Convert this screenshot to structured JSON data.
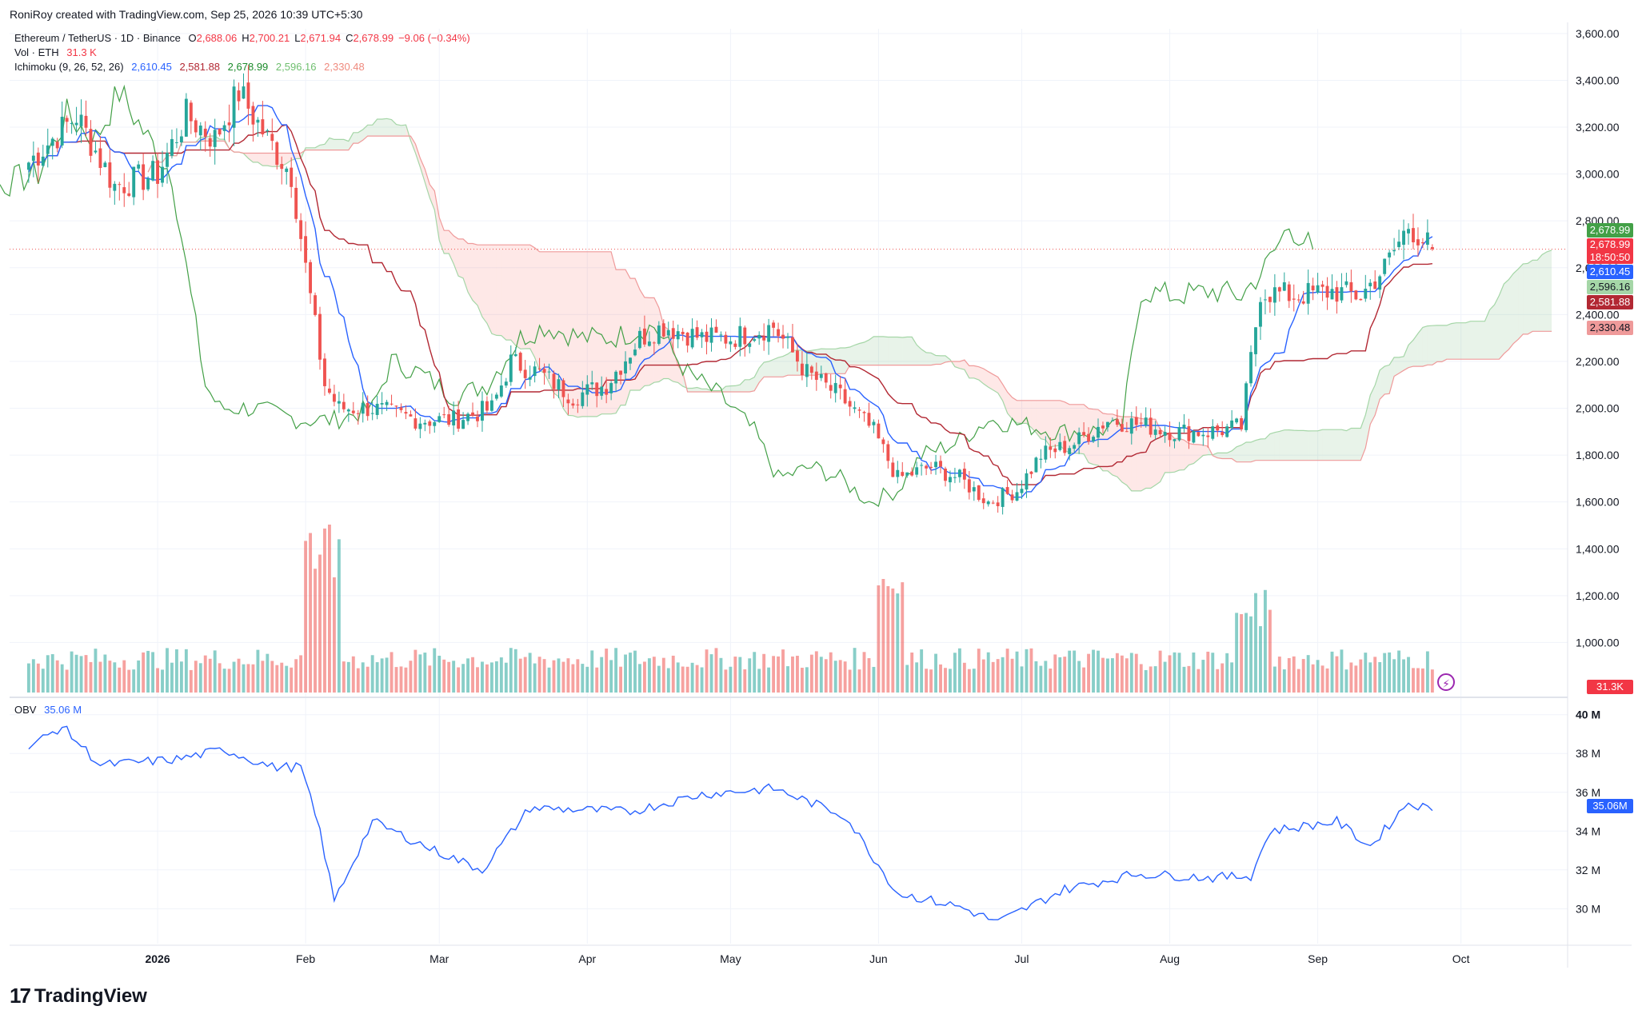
{
  "header": {
    "credit": "RoniRoy created with TradingView.com, Sep 25, 2026 10:39 UTC+5:30"
  },
  "legend": {
    "symbol": "Ethereum / TetherUS · 1D · Binance",
    "ohlc": {
      "o_label": "O",
      "o": "2,688.06",
      "h_label": "H",
      "h": "2,700.21",
      "l_label": "L",
      "l": "2,671.94",
      "c_label": "C",
      "c": "2,678.99",
      "change": "−9.06 (−0.34%)"
    },
    "vol": {
      "label": "Vol · ETH",
      "value": "31.3 K"
    },
    "ichimoku": {
      "label": "Ichimoku (9, 26, 52, 26)",
      "v1": "2,610.45",
      "v2": "2,581.88",
      "v3": "2,678.99",
      "v4": "2,596.16",
      "v5": "2,330.48"
    },
    "obv": {
      "label": "OBV",
      "value": "35.06 M"
    }
  },
  "price_tags": {
    "lagging": "2,678.99",
    "last": "2,678.99",
    "countdown": "18:50:50",
    "conversion": "2,610.45",
    "span_a": "2,596.16",
    "base": "2,581.88",
    "span_b": "2,330.48",
    "volume": "31.3K",
    "obv": "35.06M"
  },
  "colors": {
    "up": "#26a69a",
    "down": "#ef5350",
    "conversion": "#2962ff",
    "base": "#b22833",
    "lagging": "#43a047",
    "span_a": "#a5d6a7",
    "span_b": "#ef9a9a",
    "obv": "#2962ff"
  },
  "brand": {
    "logo": "17",
    "name": "TradingView"
  },
  "chart_data": [
    {
      "type": "candlestick",
      "title": "Ethereum / TetherUS · 1D · Binance",
      "price_axis": {
        "ticks": [
          "3,600.00",
          "3,400.00",
          "3,200.00",
          "3,000.00",
          "2,800.00",
          "2,600.00",
          "2,400.00",
          "2,200.00",
          "2,000.00",
          "1,800.00",
          "1,600.00",
          "1,400.00",
          "1,200.00",
          "1,000.00"
        ],
        "ylim": [
          800,
          3620
        ]
      },
      "x_axis": {
        "ticks": [
          "2026",
          "Feb",
          "Mar",
          "Apr",
          "May",
          "Jun",
          "Jul",
          "Aug",
          "Sep",
          "Oct"
        ]
      },
      "candle_anchors": [
        {
          "date": "2025-12-05",
          "close": 3050
        },
        {
          "date": "2025-12-15",
          "close": 3250
        },
        {
          "date": "2025-12-23",
          "close": 2950
        },
        {
          "date": "2026-01-01",
          "close": 3000
        },
        {
          "date": "2026-01-07",
          "close": 3250
        },
        {
          "date": "2026-01-13",
          "close": 3150
        },
        {
          "date": "2026-01-18",
          "close": 3350
        },
        {
          "date": "2026-01-24",
          "close": 3150
        },
        {
          "date": "2026-01-29",
          "close": 3000
        },
        {
          "date": "2026-02-01",
          "close": 2600
        },
        {
          "date": "2026-02-05",
          "close": 2100
        },
        {
          "date": "2026-02-08",
          "close": 2000
        },
        {
          "date": "2026-02-15",
          "close": 2000
        },
        {
          "date": "2026-02-25",
          "close": 1950
        },
        {
          "date": "2026-03-04",
          "close": 1950
        },
        {
          "date": "2026-03-12",
          "close": 2000
        },
        {
          "date": "2026-03-16",
          "close": 2200
        },
        {
          "date": "2026-03-22",
          "close": 2150
        },
        {
          "date": "2026-03-29",
          "close": 2050
        },
        {
          "date": "2026-04-05",
          "close": 2100
        },
        {
          "date": "2026-04-12",
          "close": 2300
        },
        {
          "date": "2026-04-17",
          "close": 2350
        },
        {
          "date": "2026-04-25",
          "close": 2300
        },
        {
          "date": "2026-05-01",
          "close": 2300
        },
        {
          "date": "2026-05-10",
          "close": 2350
        },
        {
          "date": "2026-05-17",
          "close": 2150
        },
        {
          "date": "2026-05-24",
          "close": 2050
        },
        {
          "date": "2026-05-31",
          "close": 1900
        },
        {
          "date": "2026-06-05",
          "close": 1700
        },
        {
          "date": "2026-06-12",
          "close": 1750
        },
        {
          "date": "2026-06-18",
          "close": 1700
        },
        {
          "date": "2026-06-24",
          "close": 1600
        },
        {
          "date": "2026-06-30",
          "close": 1650
        },
        {
          "date": "2026-07-05",
          "close": 1800
        },
        {
          "date": "2026-07-12",
          "close": 1850
        },
        {
          "date": "2026-07-19",
          "close": 1950
        },
        {
          "date": "2026-07-26",
          "close": 1930
        },
        {
          "date": "2026-08-02",
          "close": 1900
        },
        {
          "date": "2026-08-09",
          "close": 1900
        },
        {
          "date": "2026-08-16",
          "close": 1920
        },
        {
          "date": "2026-08-20",
          "close": 2500
        },
        {
          "date": "2026-08-27",
          "close": 2480
        },
        {
          "date": "2026-09-04",
          "close": 2500
        },
        {
          "date": "2026-09-10",
          "close": 2480
        },
        {
          "date": "2026-09-15",
          "close": 2600
        },
        {
          "date": "2026-09-20",
          "close": 2780
        },
        {
          "date": "2026-09-25",
          "close": 2679
        }
      ],
      "last": {
        "open": 2688.06,
        "high": 2700.21,
        "low": 2671.94,
        "close": 2678.99
      }
    },
    {
      "type": "bar",
      "title": "Vol · ETH",
      "last_value": "31.3K",
      "note": "volume spikes in early Feb, early Jun and mid Aug"
    },
    {
      "type": "line",
      "title": "OBV",
      "value_axis": {
        "ticks": [
          "40 M",
          "38 M",
          "36 M",
          "34 M",
          "32 M",
          "30 M"
        ],
        "ylim": [
          28.2,
          40.4
        ]
      },
      "anchors": [
        {
          "date": "2025-12-05",
          "obv": 38.3
        },
        {
          "date": "2025-12-12",
          "obv": 39.4
        },
        {
          "date": "2025-12-20",
          "obv": 37.4
        },
        {
          "date": "2026-01-05",
          "obv": 37.7
        },
        {
          "date": "2026-01-15",
          "obv": 38.2
        },
        {
          "date": "2026-01-25",
          "obv": 37.3
        },
        {
          "date": "2026-01-31",
          "obv": 37.3
        },
        {
          "date": "2026-02-04",
          "obv": 34.0
        },
        {
          "date": "2026-02-07",
          "obv": 30.4
        },
        {
          "date": "2026-02-15",
          "obv": 34.5
        },
        {
          "date": "2026-02-28",
          "obv": 33.0
        },
        {
          "date": "2026-03-10",
          "obv": 32.0
        },
        {
          "date": "2026-03-20",
          "obv": 35.2
        },
        {
          "date": "2026-04-10",
          "obv": 35.0
        },
        {
          "date": "2026-04-25",
          "obv": 35.9
        },
        {
          "date": "2026-05-10",
          "obv": 36.2
        },
        {
          "date": "2026-05-25",
          "obv": 34.8
        },
        {
          "date": "2026-06-05",
          "obv": 30.8
        },
        {
          "date": "2026-06-18",
          "obv": 30.1
        },
        {
          "date": "2026-06-26",
          "obv": 29.3
        },
        {
          "date": "2026-07-10",
          "obv": 31.0
        },
        {
          "date": "2026-07-25",
          "obv": 31.8
        },
        {
          "date": "2026-08-10",
          "obv": 31.6
        },
        {
          "date": "2026-08-18",
          "obv": 31.7
        },
        {
          "date": "2026-08-22",
          "obv": 34.0
        },
        {
          "date": "2026-09-05",
          "obv": 34.5
        },
        {
          "date": "2026-09-12",
          "obv": 33.2
        },
        {
          "date": "2026-09-20",
          "obv": 35.5
        },
        {
          "date": "2026-09-25",
          "obv": 35.06
        }
      ]
    }
  ]
}
